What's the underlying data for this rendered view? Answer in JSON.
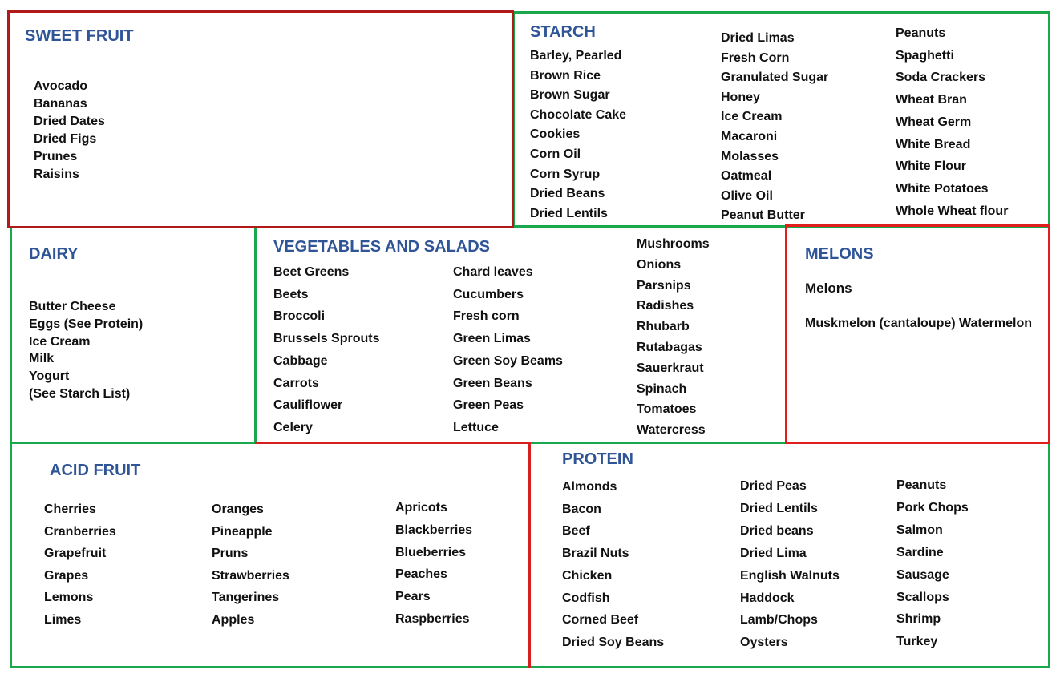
{
  "sections": [
    {
      "title": "SWEET FRUIT",
      "columns": [
        [
          "Avocado",
          "Bananas",
          "Dried Dates",
          "Dried Figs",
          "Prunes",
          "Raisins"
        ]
      ]
    },
    {
      "title": "STARCH",
      "columns": [
        [
          "Barley, Pearled",
          "Brown Rice",
          "Brown Sugar",
          "Chocolate Cake",
          "Cookies",
          "Corn Oil",
          "Corn Syrup",
          "Dried Beans",
          "Dried Lentils"
        ],
        [
          "Dried Limas",
          "Fresh Corn",
          "Granulated Sugar",
          "Honey",
          "Ice Cream",
          "Macaroni",
          "Molasses",
          "Oatmeal",
          "Olive Oil",
          "Peanut Butter"
        ],
        [
          "Peanuts",
          "Spaghetti",
          "Soda Crackers",
          "Wheat Bran",
          "Wheat Germ",
          "White Bread",
          "White Flour",
          "White Potatoes",
          "Whole Wheat flour"
        ]
      ]
    },
    {
      "title": "DAIRY",
      "columns": [
        [
          "Butter Cheese",
          "Eggs (See Protein)",
          "Ice Cream",
          "Milk",
          "Yogurt",
          "(See Starch List)"
        ]
      ]
    },
    {
      "title": "VEGETABLES AND SALADS",
      "columns": [
        [
          "Beet Greens",
          "Beets",
          "Broccoli",
          "Brussels Sprouts",
          "Cabbage",
          "Carrots",
          "Cauliflower",
          "Celery"
        ],
        [
          "Chard leaves",
          "Cucumbers",
          "Fresh corn",
          "Green Limas",
          "Green Soy Beams",
          "Green Beans",
          "Green Peas",
          "Lettuce"
        ],
        [
          "Mushrooms",
          "Onions",
          "Parsnips",
          "Radishes",
          "Rhubarb",
          "Rutabagas",
          "Sauerkraut",
          "Spinach",
          "Tomatoes",
          "Watercress"
        ]
      ]
    },
    {
      "title": "MELONS",
      "heading": "Melons",
      "columns": [
        [
          "Muskmelon (cantaloupe) Watermelon"
        ]
      ]
    },
    {
      "title": "ACID FRUIT",
      "columns": [
        [
          "Cherries",
          "Cranberries",
          "Grapefruit",
          "Grapes",
          "Lemons",
          "Limes"
        ],
        [
          "Oranges",
          "Pineapple",
          "Pruns",
          "Strawberries",
          "Tangerines",
          "Apples"
        ],
        [
          "Apricots",
          "Blackberries",
          "Blueberries",
          "Peaches",
          "Pears",
          "Raspberries"
        ]
      ]
    },
    {
      "title": "PROTEIN",
      "columns": [
        [
          "Almonds",
          "Bacon",
          "Beef",
          "Brazil Nuts",
          "Chicken",
          "Codfish",
          "Corned Beef",
          "Dried Soy Beans"
        ],
        [
          "Dried Peas",
          "Dried Lentils",
          "Dried beans",
          "Dried Lima",
          "English Walnuts",
          "Haddock",
          "Lamb/Chops",
          "Oysters"
        ],
        [
          "Peanuts",
          "Pork Chops",
          "Salmon",
          "Sardine",
          "Sausage",
          "Scallops",
          "Shrimp",
          "Turkey"
        ]
      ]
    }
  ]
}
